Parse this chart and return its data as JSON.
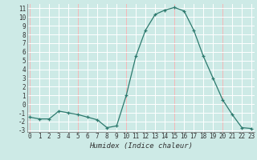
{
  "title": "",
  "xlabel": "Humidex (Indice chaleur)",
  "ylabel": "",
  "x": [
    0,
    1,
    2,
    3,
    4,
    5,
    6,
    7,
    8,
    9,
    10,
    11,
    12,
    13,
    14,
    15,
    16,
    17,
    18,
    19,
    20,
    21,
    22,
    23
  ],
  "y": [
    -1.5,
    -1.7,
    -1.7,
    -0.8,
    -1.0,
    -1.2,
    -1.5,
    -1.8,
    -2.7,
    -2.5,
    1.0,
    5.5,
    8.5,
    10.3,
    10.8,
    11.1,
    10.7,
    8.5,
    5.5,
    3.0,
    0.5,
    -1.2,
    -2.7,
    -2.8
  ],
  "ylim": [
    -3.2,
    11.5
  ],
  "xlim": [
    -0.3,
    23.3
  ],
  "line_color": "#2d7a6e",
  "marker": "+",
  "marker_size": 3.5,
  "background_color": "#cdeae6",
  "grid_white_color": "#ffffff",
  "grid_red_color": "#f5b8b8",
  "tick_color": "#333333",
  "yticks": [
    -3,
    -2,
    -1,
    0,
    1,
    2,
    3,
    4,
    5,
    6,
    7,
    8,
    9,
    10,
    11
  ],
  "xticks": [
    0,
    1,
    2,
    3,
    4,
    5,
    6,
    7,
    8,
    9,
    10,
    11,
    12,
    13,
    14,
    15,
    16,
    17,
    18,
    19,
    20,
    21,
    22,
    23
  ],
  "red_x": [
    0,
    5,
    10,
    15,
    20
  ],
  "tick_fontsize": 5.5,
  "xlabel_fontsize": 6.5
}
